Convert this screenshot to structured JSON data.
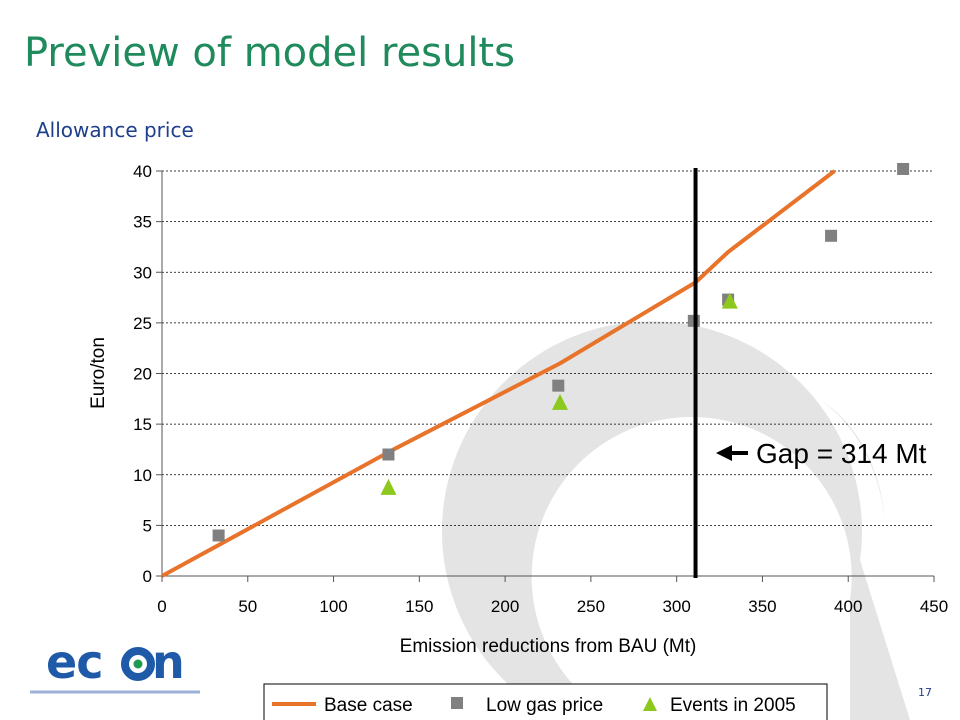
{
  "slide": {
    "title": "Preview of model results",
    "subtitle": "Allowance price",
    "page_number": "17",
    "logo_text": "econ"
  },
  "colors": {
    "title": "#1f8a5c",
    "subtitle": "#1e3f8c",
    "base_case": "#e8732a",
    "low_gas": "#808080",
    "events_2005": "#8cc81e",
    "logo_blue": "#1e5aa8",
    "logo_green": "#1f9a50"
  },
  "chart_data": {
    "type": "line",
    "xlabel": "Emission reductions from BAU (Mt)",
    "ylabel": "Euro/ton",
    "xlim": [
      0,
      450
    ],
    "ylim": [
      0,
      40
    ],
    "x_ticks": [
      "0",
      "50",
      "100",
      "150",
      "200",
      "250",
      "300",
      "350",
      "400",
      "450"
    ],
    "y_ticks": [
      "0",
      "5",
      "10",
      "15",
      "20",
      "25",
      "30",
      "35",
      "40"
    ],
    "grid": "horizontal dashed",
    "legend_position": "bottom",
    "series": [
      {
        "name": "Base case",
        "kind": "line",
        "points": [
          [
            0,
            0
          ],
          [
            135,
            12.5
          ],
          [
            232,
            21
          ],
          [
            311,
            29
          ],
          [
            330,
            32
          ],
          [
            392,
            40
          ]
        ]
      },
      {
        "name": "Low gas price",
        "kind": "square-marker",
        "points": [
          [
            33,
            4
          ],
          [
            132,
            12
          ],
          [
            231,
            18.8
          ],
          [
            310,
            25.2
          ],
          [
            330,
            27.3
          ],
          [
            390,
            33.6
          ],
          [
            432,
            40.2
          ]
        ]
      },
      {
        "name": "Events in 2005",
        "kind": "triangle-marker",
        "points": [
          [
            132,
            8.7
          ],
          [
            232,
            17.1
          ],
          [
            331,
            27.1
          ]
        ]
      }
    ],
    "vertical_line": {
      "x": 311,
      "label": "Gap = 314 Mt"
    }
  }
}
